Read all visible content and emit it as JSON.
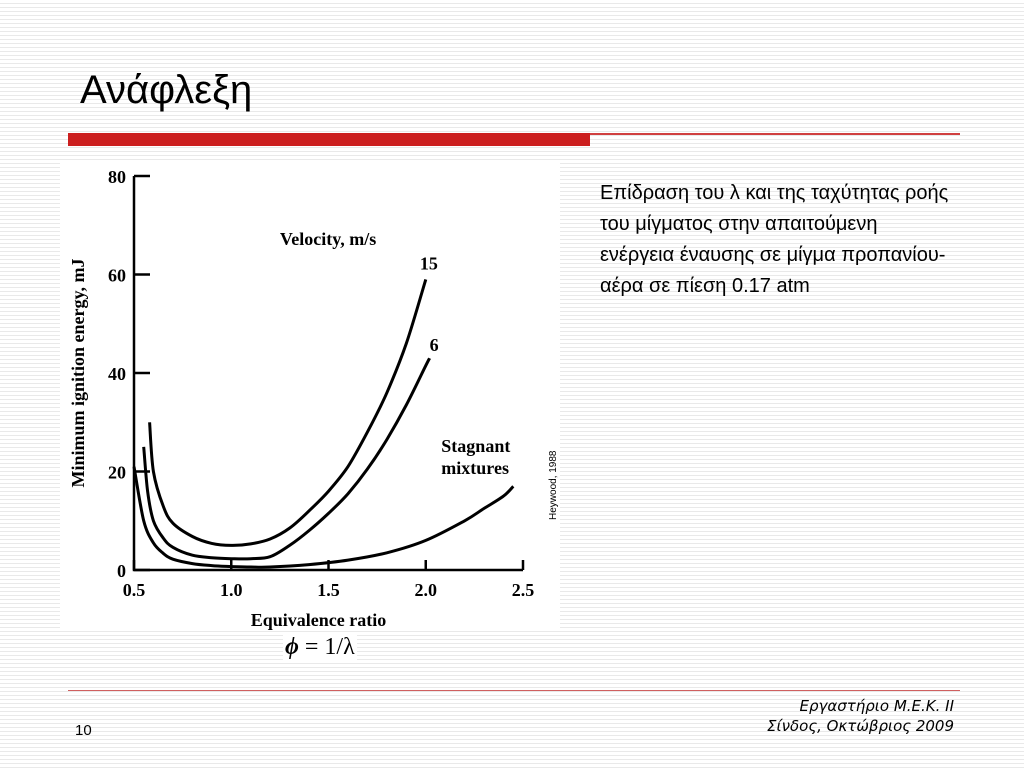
{
  "slide": {
    "title": "Ανάφλεξη",
    "description": "Επίδραση του λ και της ταχύτητας ροής του μίγματος στην απαιτούμενη ενέργεια έναυσης σε μίγμα προπανίου-αέρα σε πίεση 0.17 atm",
    "credit": "Heywood, 1988",
    "formula": {
      "symbol": "ϕ",
      "rest": " = 1/λ"
    },
    "footer": {
      "line1": "Εργαστήριο Μ.Ε.Κ. ΙΙ",
      "line2": "Σίνδος, Οκτώβριος 2009"
    },
    "page_number": "10",
    "accent_color": "#cc1f1f"
  },
  "chart_data": {
    "type": "line",
    "xlabel": "Equivalence ratio",
    "ylabel": "Minimum ignition energy, mJ",
    "xlim": [
      0.5,
      2.5
    ],
    "ylim": [
      0,
      80
    ],
    "x_ticks": [
      0.5,
      1.0,
      1.5,
      2.0,
      2.5
    ],
    "x_tick_labels": [
      "0.5",
      "1.0",
      "1.5",
      "2.0",
      "2.5"
    ],
    "y_ticks": [
      0,
      20,
      40,
      60,
      80
    ],
    "y_tick_labels": [
      "0",
      "20",
      "40",
      "60",
      "80"
    ],
    "legend_title": "Velocity, m/s",
    "series": [
      {
        "name": "15",
        "x": [
          0.58,
          0.6,
          0.65,
          0.7,
          0.8,
          0.9,
          1.0,
          1.1,
          1.2,
          1.3,
          1.4,
          1.5,
          1.6,
          1.7,
          1.8,
          1.9,
          2.0
        ],
        "y": [
          30,
          20,
          13,
          9.5,
          6.8,
          5.4,
          5,
          5.3,
          6.3,
          8.5,
          12,
          16,
          21,
          28,
          36,
          46,
          59
        ]
      },
      {
        "name": "6",
        "x": [
          0.55,
          0.57,
          0.6,
          0.65,
          0.7,
          0.8,
          0.9,
          1.0,
          1.1,
          1.2,
          1.3,
          1.4,
          1.5,
          1.6,
          1.7,
          1.8,
          1.9,
          2.0,
          2.02
        ],
        "y": [
          25,
          16,
          10,
          6.5,
          4.6,
          3,
          2.5,
          2.3,
          2.3,
          2.7,
          5,
          8,
          11.5,
          15.5,
          20.5,
          26.5,
          33.5,
          41.5,
          43
        ]
      },
      {
        "name": "Stagnant mixtures",
        "x": [
          0.5,
          0.55,
          0.6,
          0.65,
          0.7,
          0.8,
          0.9,
          1.0,
          1.1,
          1.2,
          1.4,
          1.6,
          1.8,
          2.0,
          2.2,
          2.3,
          2.4,
          2.45
        ],
        "y": [
          21,
          10,
          5.5,
          3.4,
          2.2,
          1.3,
          0.9,
          0.7,
          0.6,
          0.6,
          1.1,
          2,
          3.5,
          6,
          10,
          12.5,
          15,
          17
        ]
      }
    ],
    "grid": false
  }
}
